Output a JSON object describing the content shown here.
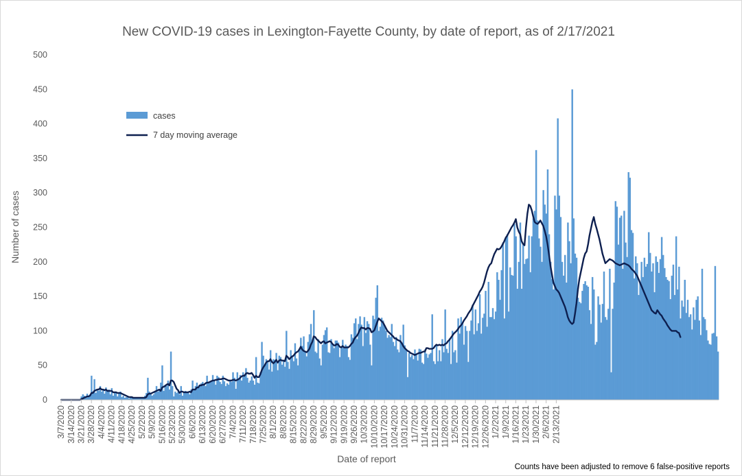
{
  "chart_data": {
    "type": "bar",
    "title": "New COVID-19 cases in Lexington-Fayette County, by date of report, as of 2/17/2021",
    "xlabel": "Date of report",
    "ylabel": "Number of cases",
    "ylim": [
      0,
      500
    ],
    "yticks": [
      "0",
      "50",
      "100",
      "150",
      "200",
      "250",
      "300",
      "350",
      "400",
      "450",
      "500"
    ],
    "xticks": [
      "3/7/2020",
      "3/14/2020",
      "3/21/2020",
      "3/28/2020",
      "4/4/2020",
      "4/11/2020",
      "4/18/2020",
      "4/25/2020",
      "5/2/2020",
      "5/9/2020",
      "5/16/2020",
      "5/23/2020",
      "5/30/2020",
      "6/6/2020",
      "6/13/2020",
      "6/20/2020",
      "6/27/2020",
      "7/4/2020",
      "7/11/2020",
      "7/18/2020",
      "7/25/2020",
      "8/1/2020",
      "8/8/2020",
      "8/15/2020",
      "8/22/2020",
      "8/29/2020",
      "9/5/2020",
      "9/12/2020",
      "9/19/2020",
      "9/26/2020",
      "10/3/2020",
      "10/10/2020",
      "10/17/2020",
      "10/24/2020",
      "10/31/2020",
      "11/7/2020",
      "11/14/2020",
      "11/21/2020",
      "11/28/2020",
      "12/5/2020",
      "12/12/2020",
      "12/19/2020",
      "12/26/2020",
      "1/2/2021",
      "1/9/2021",
      "1/16/2021",
      "1/23/2021",
      "1/30/2021",
      "2/6/2021",
      "2/13/2021"
    ],
    "grid": false,
    "legend_position": "upper-left",
    "bar_color": "#5b9bd5",
    "line_color": "#0d1f4f",
    "series": [
      {
        "name": "cases",
        "type": "bar",
        "values": [
          0,
          0,
          0,
          0,
          0,
          0,
          0,
          0,
          0,
          0,
          0,
          0,
          0,
          0,
          5,
          8,
          6,
          4,
          9,
          4,
          8,
          35,
          12,
          30,
          10,
          16,
          13,
          20,
          12,
          16,
          9,
          18,
          14,
          15,
          8,
          17,
          6,
          11,
          12,
          5,
          10,
          12,
          4,
          6,
          3,
          4,
          4,
          2,
          5,
          3,
          3,
          4,
          2,
          3,
          4,
          3,
          2,
          3,
          6,
          10,
          32,
          12,
          9,
          6,
          8,
          13,
          20,
          12,
          15,
          25,
          50,
          13,
          22,
          20,
          28,
          15,
          70,
          20,
          5,
          12,
          10,
          12,
          8,
          20,
          6,
          10,
          13,
          12,
          10,
          8,
          15,
          28,
          14,
          20,
          25,
          18,
          21,
          24,
          26,
          22,
          20,
          35,
          24,
          27,
          28,
          36,
          29,
          22,
          35,
          33,
          26,
          23,
          35,
          27,
          20,
          24,
          22,
          29,
          26,
          40,
          32,
          16,
          40,
          31,
          36,
          28,
          40,
          35,
          46,
          32,
          25,
          28,
          34,
          28,
          22,
          62,
          25,
          24,
          40,
          84,
          64,
          51,
          59,
          56,
          44,
          72,
          41,
          59,
          58,
          68,
          43,
          64,
          62,
          51,
          58,
          48,
          100,
          55,
          45,
          72,
          62,
          56,
          82,
          60,
          50,
          74,
          90,
          78,
          92,
          71,
          63,
          84,
          95,
          110,
          85,
          130,
          70,
          68,
          88,
          60,
          50,
          80,
          94,
          101,
          105,
          69,
          68,
          88,
          80,
          75,
          86,
          86,
          83,
          62,
          75,
          87,
          76,
          80,
          78,
          62,
          58,
          95,
          90,
          111,
          118,
          88,
          110,
          121,
          109,
          78,
          120,
          97,
          114,
          110,
          80,
          50,
          122,
          117,
          148,
          166,
          100,
          106,
          119,
          115,
          108,
          100,
          90,
          94,
          91,
          110,
          84,
          78,
          91,
          73,
          69,
          94,
          82,
          109,
          79,
          72,
          33,
          68,
          62,
          65,
          59,
          73,
          66,
          57,
          74,
          73,
          54,
          52,
          73,
          67,
          61,
          66,
          68,
          124,
          56,
          52,
          80,
          56,
          72,
          56,
          88,
          69,
          131,
          74,
          68,
          89,
          52,
          100,
          69,
          72,
          54,
          118,
          96,
          120,
          113,
          80,
          107,
          100,
          55,
          100,
          115,
          138,
          95,
          131,
          100,
          111,
          153,
          96,
          119,
          125,
          158,
          106,
          171,
          120,
          120,
          133,
          117,
          128,
          185,
          174,
          145,
          188,
          228,
          118,
          235,
          240,
          128,
          192,
          181,
          180,
          255,
          237,
          161,
          200,
          257,
          161,
          225,
          197,
          204,
          205,
          238,
          185,
          237,
          263,
          274,
          362,
          260,
          234,
          222,
          200,
          304,
          283,
          270,
          334,
          240,
          200,
          175,
          160,
          296,
          276,
          408,
          296,
          265,
          200,
          180,
          210,
          170,
          257,
          230,
          198,
          450,
          263,
          212,
          206,
          148,
          142,
          140,
          158,
          168,
          172,
          166,
          164,
          130,
          110,
          178,
          160,
          80,
          84,
          150,
          138,
          112,
          139,
          186,
          120,
          116,
          132,
          190,
          40,
          132,
          170,
          288,
          280,
          225,
          264,
          267,
          190,
          274,
          228,
          207,
          330,
          322,
          246,
          242,
          176,
          208,
          198,
          152,
          170,
          200,
          178,
          206,
          193,
          197,
          243,
          213,
          186,
          198,
          156,
          208,
          200,
          184,
          204,
          236,
          210,
          191,
          178,
          174,
          172,
          146,
          180,
          196,
          152,
          237,
          160,
          193,
          118,
          144,
          135,
          174,
          126,
          145,
          120,
          124,
          102,
          134,
          116,
          145,
          150,
          115,
          94,
          190,
          120,
          117,
          101,
          86,
          81,
          80,
          96,
          97,
          194,
          92,
          70
        ]
      },
      {
        "name": "7 day moving average",
        "type": "line",
        "values": [
          0,
          0,
          0,
          0,
          0,
          0,
          0,
          0,
          0,
          0,
          0,
          0,
          0,
          0,
          1,
          2,
          3,
          4,
          5,
          5,
          6,
          10,
          10,
          13,
          14,
          15,
          15,
          17,
          15,
          15,
          14,
          15,
          13,
          13,
          13,
          13,
          11,
          11,
          11,
          10,
          10,
          10,
          9,
          8,
          7,
          6,
          5,
          4,
          4,
          4,
          3,
          3,
          3,
          3,
          3,
          3,
          3,
          3,
          3,
          4,
          8,
          9,
          9,
          10,
          11,
          12,
          13,
          14,
          15,
          13,
          18,
          19,
          20,
          22,
          23,
          21,
          28,
          28,
          26,
          21,
          16,
          14,
          10,
          12,
          12,
          11,
          11,
          11,
          11,
          12,
          11,
          15,
          15,
          15,
          18,
          18,
          21,
          21,
          22,
          22,
          24,
          25,
          25,
          26,
          27,
          28,
          28,
          29,
          29,
          30,
          30,
          30,
          31,
          31,
          30,
          29,
          28,
          28,
          28,
          29,
          29,
          28,
          29,
          30,
          32,
          34,
          35,
          35,
          38,
          39,
          38,
          38,
          39,
          36,
          32,
          35,
          33,
          33,
          37,
          43,
          47,
          50,
          54,
          56,
          56,
          59,
          55,
          53,
          55,
          58,
          54,
          57,
          58,
          57,
          57,
          56,
          64,
          62,
          59,
          61,
          63,
          64,
          67,
          69,
          70,
          73,
          77,
          73,
          71,
          70,
          69,
          71,
          74,
          80,
          84,
          92,
          91,
          88,
          86,
          84,
          82,
          84,
          85,
          82,
          83,
          84,
          85,
          84,
          81,
          79,
          79,
          81,
          80,
          77,
          76,
          78,
          76,
          76,
          76,
          76,
          78,
          81,
          83,
          88,
          91,
          93,
          97,
          102,
          105,
          104,
          104,
          102,
          104,
          104,
          103,
          98,
          99,
          101,
          107,
          113,
          118,
          116,
          114,
          112,
          108,
          104,
          100,
          98,
          96,
          94,
          92,
          89,
          89,
          87,
          86,
          85,
          82,
          78,
          75,
          73,
          71,
          70,
          68,
          67,
          66,
          65,
          66,
          67,
          68,
          68,
          69,
          70,
          70,
          75,
          75,
          74,
          74,
          74,
          75,
          78,
          80,
          79,
          80,
          79,
          80,
          79,
          81,
          82,
          85,
          87,
          90,
          93,
          96,
          98,
          100,
          103,
          106,
          108,
          111,
          115,
          118,
          121,
          125,
          128,
          131,
          136,
          140,
          144,
          148,
          152,
          157,
          160,
          164,
          170,
          178,
          186,
          192,
          196,
          198,
          205,
          211,
          215,
          219,
          218,
          219,
          222,
          226,
          230,
          235,
          238,
          242,
          246,
          250,
          253,
          257,
          262,
          250,
          244,
          240,
          230,
          226,
          224,
          250,
          270,
          283,
          281,
          275,
          266,
          258,
          256,
          255,
          257,
          260,
          256,
          252,
          245,
          237,
          225,
          210,
          194,
          182,
          170,
          165,
          160,
          158,
          155,
          150,
          145,
          140,
          135,
          128,
          120,
          115,
          112,
          110,
          112,
          125,
          140,
          160,
          175,
          185,
          195,
          205,
          212,
          215,
          225,
          238,
          248,
          258,
          265,
          255,
          248,
          240,
          232,
          222,
          212,
          205,
          198,
          200,
          202,
          204,
          203,
          202,
          200,
          198,
          197,
          196,
          195,
          196,
          197,
          198,
          197,
          196,
          195,
          193,
          190,
          188,
          186,
          183,
          180,
          175,
          170,
          165,
          160,
          155,
          150,
          145,
          140,
          135,
          130,
          128,
          126,
          125,
          130,
          127,
          124,
          122,
          118,
          115,
          112,
          108,
          105,
          102,
          100,
          100,
          100,
          100,
          98,
          97,
          91
        ]
      }
    ]
  },
  "legend": {
    "bar_label": "cases",
    "line_label": "7 day moving average"
  },
  "footnote": "Counts have been adjusted to remove 6 false-positive reports"
}
